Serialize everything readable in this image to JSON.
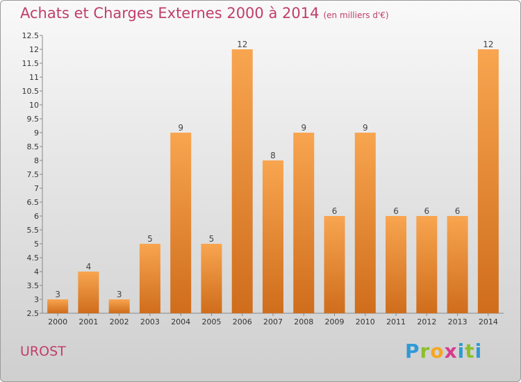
{
  "header": {
    "title": "Achats et Charges Externes 2000 à 2014",
    "unit": "(en milliers d'€)"
  },
  "footer": {
    "town": "UROST"
  },
  "logo": {
    "letters": [
      "P",
      "r",
      "o",
      "x",
      "i",
      "t",
      "i"
    ],
    "colors": [
      "#2e9ad6",
      "#8dbf2b",
      "#f5a623",
      "#d93a8f",
      "#2e9ad6",
      "#8dbf2b",
      "#2e9ad6"
    ]
  },
  "chart_data": {
    "type": "bar",
    "categories": [
      "2000",
      "2001",
      "2002",
      "2003",
      "2004",
      "2005",
      "2006",
      "2007",
      "2008",
      "2009",
      "2010",
      "2011",
      "2012",
      "2013",
      "2014"
    ],
    "values": [
      3,
      4,
      3,
      5,
      9,
      5,
      12,
      8,
      9,
      6,
      9,
      6,
      6,
      6,
      12
    ],
    "data_labels": [
      "3",
      "4",
      "3",
      "5",
      "9",
      "5",
      "12",
      "8",
      "9",
      "6",
      "9",
      "6",
      "6",
      "6",
      "12"
    ],
    "ylim": [
      2.5,
      12.5
    ],
    "yticks": [
      "2.5",
      "3",
      "3.5",
      "4",
      "4.5",
      "5",
      "5.5",
      "6",
      "6.5",
      "7",
      "7.5",
      "8",
      "8.5",
      "9",
      "9.5",
      "10",
      "10.5",
      "11",
      "11.5",
      "12",
      "12.5"
    ],
    "grid": false,
    "bar_color_top": "#f8a550",
    "bar_color_bottom": "#cf6d1c"
  }
}
